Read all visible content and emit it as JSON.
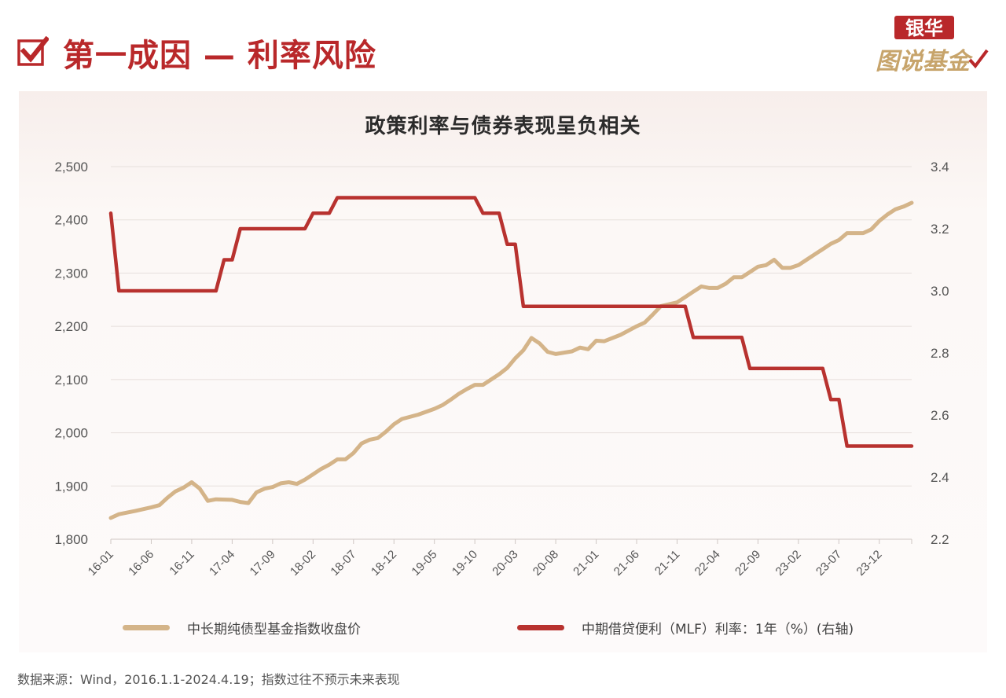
{
  "header": {
    "title": "第一成因 — 利率风险",
    "brand": {
      "line1": "银华",
      "line2": "图说基金"
    },
    "check_icon": "checkbox-check-icon"
  },
  "colors": {
    "accent": "#b9282a",
    "bond_line": "#d4b489",
    "mlf_line": "#b8322f",
    "brand_gold": "#c7a46b"
  },
  "footnote": "数据来源：Wind，2016.1.1-2024.4.19；指数过往不预示未来表现",
  "chart_data": {
    "type": "line",
    "title": "政策利率与债券表现呈负相关",
    "x_ticks": [
      "16-01",
      "16-06",
      "16-11",
      "17-04",
      "17-09",
      "18-02",
      "18-07",
      "18-12",
      "19-05",
      "19-10",
      "20-03",
      "20-08",
      "21-01",
      "21-06",
      "21-11",
      "22-04",
      "22-09",
      "23-02",
      "23-07",
      "23-12"
    ],
    "x_range_months": [
      "2016-01",
      "2024-04"
    ],
    "y_left": {
      "ticks": [
        "1,800",
        "1,900",
        "2,000",
        "2,100",
        "2,200",
        "2,300",
        "2,400",
        "2,500"
      ],
      "range": [
        1800,
        2500
      ]
    },
    "y_right": {
      "ticks": [
        "2.2",
        "2.4",
        "2.6",
        "2.8",
        "3.0",
        "3.2",
        "3.4"
      ],
      "range": [
        2.2,
        3.4
      ]
    },
    "grid": "horizontal",
    "legend_position": "bottom",
    "series": [
      {
        "name": "中长期纯债型基金指数收盘价",
        "axis": "left",
        "color": "#d4b489",
        "points": [
          [
            "2016-01",
            1840
          ],
          [
            "2016-02",
            1847
          ],
          [
            "2016-04",
            1853
          ],
          [
            "2016-06",
            1860
          ],
          [
            "2016-07",
            1864
          ],
          [
            "2016-08",
            1878
          ],
          [
            "2016-09",
            1890
          ],
          [
            "2016-10",
            1897
          ],
          [
            "2016-11",
            1907
          ],
          [
            "2016-12",
            1895
          ],
          [
            "2017-01",
            1872
          ],
          [
            "2017-02",
            1875
          ],
          [
            "2017-04",
            1874
          ],
          [
            "2017-05",
            1870
          ],
          [
            "2017-06",
            1868
          ],
          [
            "2017-07",
            1888
          ],
          [
            "2017-08",
            1895
          ],
          [
            "2017-09",
            1898
          ],
          [
            "2017-10",
            1905
          ],
          [
            "2017-11",
            1907
          ],
          [
            "2017-12",
            1904
          ],
          [
            "2018-01",
            1912
          ],
          [
            "2018-02",
            1922
          ],
          [
            "2018-03",
            1932
          ],
          [
            "2018-04",
            1940
          ],
          [
            "2018-05",
            1950
          ],
          [
            "2018-06",
            1950
          ],
          [
            "2018-07",
            1962
          ],
          [
            "2018-08",
            1980
          ],
          [
            "2018-09",
            1987
          ],
          [
            "2018-10",
            1990
          ],
          [
            "2018-11",
            2002
          ],
          [
            "2018-12",
            2016
          ],
          [
            "2019-01",
            2026
          ],
          [
            "2019-03",
            2034
          ],
          [
            "2019-05",
            2045
          ],
          [
            "2019-06",
            2052
          ],
          [
            "2019-07",
            2062
          ],
          [
            "2019-08",
            2073
          ],
          [
            "2019-09",
            2082
          ],
          [
            "2019-10",
            2090
          ],
          [
            "2019-11",
            2090
          ],
          [
            "2019-12",
            2100
          ],
          [
            "2020-01",
            2110
          ],
          [
            "2020-02",
            2122
          ],
          [
            "2020-03",
            2140
          ],
          [
            "2020-04",
            2155
          ],
          [
            "2020-05",
            2178
          ],
          [
            "2020-06",
            2168
          ],
          [
            "2020-07",
            2152
          ],
          [
            "2020-08",
            2148
          ],
          [
            "2020-10",
            2153
          ],
          [
            "2020-11",
            2160
          ],
          [
            "2020-12",
            2157
          ],
          [
            "2021-01",
            2173
          ],
          [
            "2021-02",
            2172
          ],
          [
            "2021-04",
            2184
          ],
          [
            "2021-06",
            2200
          ],
          [
            "2021-07",
            2207
          ],
          [
            "2021-08",
            2222
          ],
          [
            "2021-09",
            2238
          ],
          [
            "2021-11",
            2245
          ],
          [
            "2021-12",
            2255
          ],
          [
            "2022-01",
            2265
          ],
          [
            "2022-02",
            2275
          ],
          [
            "2022-03",
            2272
          ],
          [
            "2022-04",
            2272
          ],
          [
            "2022-05",
            2280
          ],
          [
            "2022-06",
            2292
          ],
          [
            "2022-07",
            2292
          ],
          [
            "2022-08",
            2302
          ],
          [
            "2022-09",
            2312
          ],
          [
            "2022-10",
            2315
          ],
          [
            "2022-11",
            2325
          ],
          [
            "2022-12",
            2310
          ],
          [
            "2023-01",
            2310
          ],
          [
            "2023-02",
            2315
          ],
          [
            "2023-03",
            2325
          ],
          [
            "2023-04",
            2335
          ],
          [
            "2023-05",
            2345
          ],
          [
            "2023-06",
            2355
          ],
          [
            "2023-07",
            2362
          ],
          [
            "2023-08",
            2375
          ],
          [
            "2023-10",
            2375
          ],
          [
            "2023-11",
            2382
          ],
          [
            "2023-12",
            2398
          ],
          [
            "2024-01",
            2410
          ],
          [
            "2024-02",
            2420
          ],
          [
            "2024-03",
            2425
          ],
          [
            "2024-04",
            2432
          ]
        ]
      },
      {
        "name": "中期借贷便利（MLF）利率：1年（%）(右轴)",
        "axis": "right",
        "color": "#b8322f",
        "points": [
          [
            "2016-01",
            3.25
          ],
          [
            "2016-02",
            3.0
          ],
          [
            "2017-01",
            3.0
          ],
          [
            "2017-02",
            3.0
          ],
          [
            "2017-03",
            3.1
          ],
          [
            "2017-04",
            3.1
          ],
          [
            "2017-05",
            3.2
          ],
          [
            "2017-12",
            3.2
          ],
          [
            "2018-01",
            3.2
          ],
          [
            "2018-02",
            3.25
          ],
          [
            "2018-03",
            3.25
          ],
          [
            "2018-04",
            3.25
          ],
          [
            "2018-05",
            3.3
          ],
          [
            "2019-10",
            3.3
          ],
          [
            "2019-11",
            3.25
          ],
          [
            "2020-01",
            3.25
          ],
          [
            "2020-02",
            3.15
          ],
          [
            "2020-03",
            3.15
          ],
          [
            "2020-04",
            2.95
          ],
          [
            "2021-12",
            2.95
          ],
          [
            "2022-01",
            2.85
          ],
          [
            "2022-07",
            2.85
          ],
          [
            "2022-08",
            2.75
          ],
          [
            "2023-05",
            2.75
          ],
          [
            "2023-06",
            2.65
          ],
          [
            "2023-07",
            2.65
          ],
          [
            "2023-08",
            2.5
          ],
          [
            "2024-04",
            2.5
          ]
        ]
      }
    ]
  }
}
